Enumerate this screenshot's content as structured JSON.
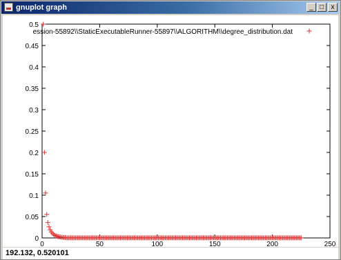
{
  "window": {
    "title": "gnuplot graph",
    "controls": {
      "minimize": "_",
      "maximize": "□",
      "close": "x"
    }
  },
  "status": {
    "coords": "192.132, 0.520101"
  },
  "colors": {
    "series": "#e03030",
    "title_bar": "#0a246a"
  },
  "chart_data": {
    "type": "scatter",
    "xlim": [
      0,
      250
    ],
    "ylim": [
      0,
      0.5
    ],
    "xticks": [
      "0",
      "50",
      "100",
      "150",
      "200",
      "250"
    ],
    "yticks": [
      "0",
      "0.05",
      "0.1",
      "0.15",
      "0.2",
      "0.25",
      "0.3",
      "0.35",
      "0.4",
      "0.45",
      "0.5"
    ],
    "grid": false,
    "legend": "top-right",
    "series": [
      {
        "name": "ession-55892\\\\StaticExecutableRunner-55897\\\\ALGORITHM\\\\degree_distribution.dat",
        "marker": "+",
        "head": [
          [
            1,
            0.5
          ],
          [
            2,
            0.2
          ],
          [
            3,
            0.105
          ],
          [
            4,
            0.055
          ],
          [
            5,
            0.036
          ],
          [
            6,
            0.026
          ],
          [
            7,
            0.019
          ],
          [
            8,
            0.014
          ],
          [
            9,
            0.011
          ],
          [
            10,
            0.008
          ],
          [
            11,
            0.006
          ],
          [
            12,
            0.005
          ],
          [
            13,
            0.004
          ],
          [
            14,
            0.003
          ],
          [
            15,
            0.0025
          ],
          [
            16,
            0.002
          ],
          [
            17,
            0.0015
          ],
          [
            18,
            0.0012
          ],
          [
            19,
            0.001
          ],
          [
            20,
            0.0008
          ]
        ],
        "tail_x_range": [
          21,
          225
        ],
        "tail_y": 0.0002
      }
    ]
  }
}
